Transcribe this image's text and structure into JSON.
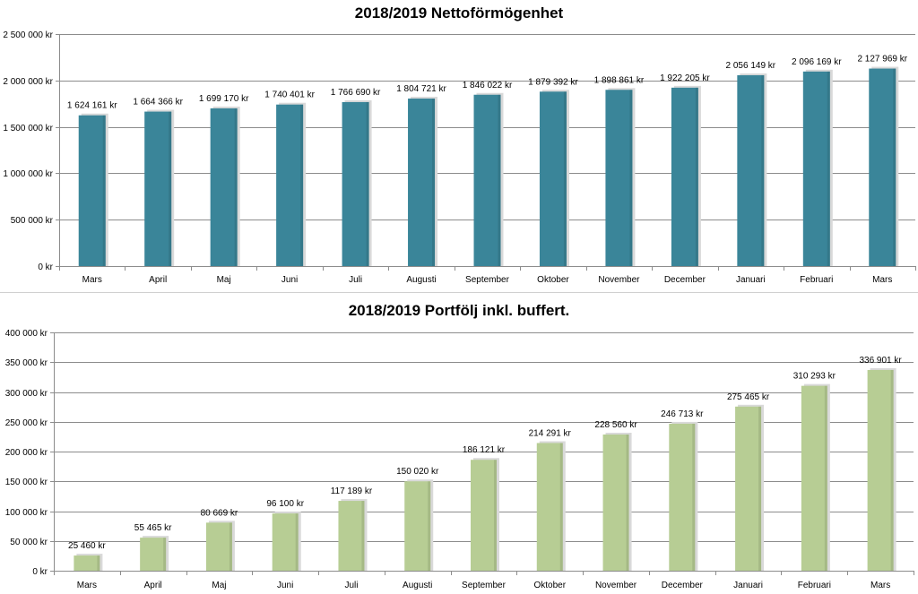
{
  "chart_data": [
    {
      "type": "bar",
      "title": "2018/2019 Nettoförmögenhet",
      "categories": [
        "Mars",
        "April",
        "Maj",
        "Juni",
        "Juli",
        "Augusti",
        "September",
        "Oktober",
        "November",
        "December",
        "Januari",
        "Februari",
        "Mars"
      ],
      "values": [
        1624161,
        1664366,
        1699170,
        1740401,
        1766690,
        1804721,
        1846022,
        1879392,
        1898861,
        1922205,
        2056149,
        2096169,
        2127969
      ],
      "data_labels": [
        "1 624 161 kr",
        "1 664 366 kr",
        "1 699 170 kr",
        "1 740 401 kr",
        "1 766 690 kr",
        "1 804 721 kr",
        "1 846 022 kr",
        "1 879 392 kr",
        "1 898 861 kr",
        "1 922 205 kr",
        "2 056 149 kr",
        "2 096 169 kr",
        "2 127 969 kr"
      ],
      "ylim": [
        0,
        2500000
      ],
      "yticks": [
        0,
        500000,
        1000000,
        1500000,
        2000000,
        2500000
      ],
      "ytick_labels": [
        "0 kr",
        "500 000 kr",
        "1 000 000 kr",
        "1 500 000 kr",
        "2 000 000 kr",
        "2 500 000 kr"
      ],
      "xlabel": "",
      "ylabel": "",
      "grid": true,
      "color": "#3a8599"
    },
    {
      "type": "bar",
      "title": "2018/2019 Portfölj inkl. buffert.",
      "categories": [
        "Mars",
        "April",
        "Maj",
        "Juni",
        "Juli",
        "Augusti",
        "September",
        "Oktober",
        "November",
        "December",
        "Januari",
        "Februari",
        "Mars"
      ],
      "values": [
        25460,
        55465,
        80669,
        96100,
        117189,
        150020,
        186121,
        214291,
        228560,
        246713,
        275465,
        310293,
        336901
      ],
      "data_labels": [
        "25 460 kr",
        "55 465 kr",
        "80 669 kr",
        "96 100 kr",
        "117 189 kr",
        "150 020 kr",
        "186 121 kr",
        "214 291 kr",
        "228 560 kr",
        "246 713 kr",
        "275 465 kr",
        "310 293 kr",
        "336 901 kr"
      ],
      "ylim": [
        0,
        400000
      ],
      "yticks": [
        0,
        50000,
        100000,
        150000,
        200000,
        250000,
        300000,
        350000,
        400000
      ],
      "ytick_labels": [
        "0 kr",
        "50 000 kr",
        "100 000 kr",
        "150 000 kr",
        "200 000 kr",
        "250 000 kr",
        "300 000 kr",
        "350 000 kr",
        "400 000 kr"
      ],
      "xlabel": "",
      "ylabel": "",
      "grid": true,
      "color": "#b7cd94"
    }
  ]
}
